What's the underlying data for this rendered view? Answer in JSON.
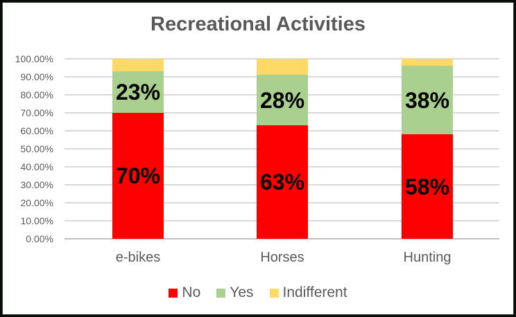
{
  "chart_data": {
    "type": "bar",
    "stacked": true,
    "percent_stacked": true,
    "title": "Recreational Activities",
    "xlabel": "",
    "ylabel": "",
    "categories": [
      "e-bikes",
      "Horses",
      "Hunting"
    ],
    "series": [
      {
        "name": "No",
        "color": "#FF0000",
        "values": [
          70,
          63,
          58
        ],
        "data_labels": [
          "70%",
          "63%",
          "58%"
        ]
      },
      {
        "name": "Yes",
        "color": "#A9D08E",
        "values": [
          23,
          28,
          38
        ],
        "data_labels": [
          "23%",
          "28%",
          "38%"
        ]
      },
      {
        "name": "Indifferent",
        "color": "#FFD966",
        "values": [
          7,
          9,
          4
        ],
        "data_labels": [
          "",
          "",
          ""
        ]
      }
    ],
    "y_axis": {
      "min": 0,
      "max": 100,
      "tick_step": 10,
      "ticks_top_to_bottom": [
        "100.00%",
        "90.00%",
        "80.00%",
        "70.00%",
        "60.00%",
        "50.00%",
        "40.00%",
        "30.00%",
        "20.00%",
        "10.00%",
        "0.00%"
      ]
    },
    "grid": true,
    "legend_position": "bottom"
  },
  "colors": {
    "title_text": "#595959",
    "axis_text": "#595959",
    "data_label_text": "#000000",
    "gridline": "#D9D9D9",
    "axis_line": "#BFBFBF",
    "frame_border": "#0A0A0A",
    "frame_border_inner": "#2E4A2E"
  }
}
